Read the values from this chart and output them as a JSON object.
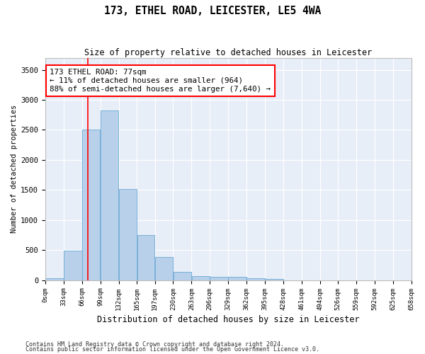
{
  "title": "173, ETHEL ROAD, LEICESTER, LE5 4WA",
  "subtitle": "Size of property relative to detached houses in Leicester",
  "xlabel": "Distribution of detached houses by size in Leicester",
  "ylabel": "Number of detached properties",
  "bar_color": "#b8d0ea",
  "bar_edgecolor": "#6aaad4",
  "bg_color": "#e8eef8",
  "grid_color": "#ffffff",
  "annotation_text": "173 ETHEL ROAD: 77sqm\n← 11% of detached houses are smaller (964)\n88% of semi-detached houses are larger (7,640) →",
  "vline_x": 77,
  "bin_edges": [
    0,
    33,
    66,
    99,
    132,
    165,
    197,
    230,
    263,
    296,
    329,
    362,
    395,
    428,
    461,
    494,
    526,
    559,
    592,
    625,
    658
  ],
  "bin_labels": [
    "0sqm",
    "33sqm",
    "66sqm",
    "99sqm",
    "132sqm",
    "165sqm",
    "197sqm",
    "230sqm",
    "263sqm",
    "296sqm",
    "329sqm",
    "362sqm",
    "395sqm",
    "428sqm",
    "461sqm",
    "494sqm",
    "526sqm",
    "559sqm",
    "592sqm",
    "625sqm",
    "658sqm"
  ],
  "bar_heights": [
    25,
    490,
    2510,
    2820,
    1520,
    750,
    380,
    140,
    70,
    55,
    55,
    25,
    20,
    0,
    0,
    0,
    0,
    0,
    0,
    0
  ],
  "ylim": [
    0,
    3700
  ],
  "yticks": [
    0,
    500,
    1000,
    1500,
    2000,
    2500,
    3000,
    3500
  ],
  "footer1": "Contains HM Land Registry data © Crown copyright and database right 2024.",
  "footer2": "Contains public sector information licensed under the Open Government Licence v3.0."
}
